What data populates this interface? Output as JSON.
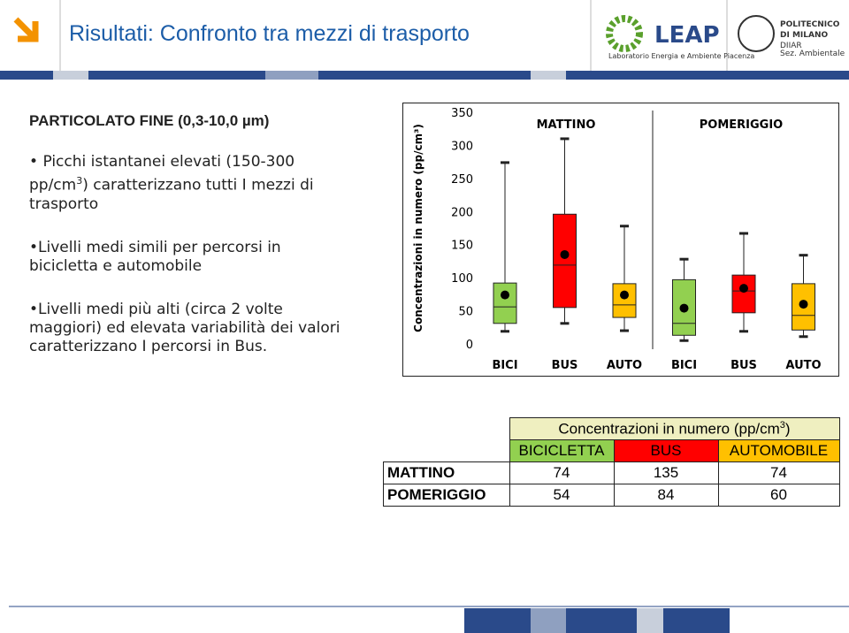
{
  "header": {
    "title": "Risultati: Confronto  tra mezzi di trasporto",
    "leap": {
      "name": "LEAP",
      "subtitle": "Laboratorio Energia e Ambiente Piacenza"
    },
    "polimi": {
      "line1": "POLITECNICO",
      "line2": "DI MILANO",
      "dept": "DIIAR",
      "section": "Sez. Ambientale"
    }
  },
  "body": {
    "heading": "PARTICOLATO FINE  (0,3-10,0 µm)",
    "bullets": [
      {
        "parts": [
          "Picchi istantanei elevati  (150-300 pp/cm",
          "3",
          ") caratterizzano tutti  I  mezzi di trasporto"
        ]
      },
      {
        "parts": [
          "Livelli medi  simili  per  percorsi in bicicletta e automobile"
        ]
      },
      {
        "parts": [
          "Livelli medi più alti (circa 2 volte maggiori) ed elevata variabilità dei valori caratterizzano I percorsi in Bus."
        ]
      }
    ]
  },
  "chart_data": {
    "type": "box",
    "ylabel": "Concentrazioni in numero (pp/cm³)",
    "ylim": [
      0,
      350
    ],
    "yticks": [
      0,
      50,
      100,
      150,
      200,
      250,
      300,
      350
    ],
    "groups": [
      "MATTINO",
      "POMERIGGIO"
    ],
    "categories": [
      "BICI",
      "BUS",
      "AUTO",
      "BICI",
      "BUS",
      "AUTO"
    ],
    "boxes": [
      {
        "min": 19,
        "q1": 31,
        "median": 56,
        "q3": 92,
        "max": 274,
        "mean": 74,
        "color": "#92d050"
      },
      {
        "min": 31,
        "q1": 55,
        "median": 119,
        "q3": 196,
        "max": 310,
        "mean": 135,
        "color": "#ff0000"
      },
      {
        "min": 20,
        "q1": 40,
        "median": 59,
        "q3": 91,
        "max": 178,
        "mean": 74,
        "color": "#ffc000"
      },
      {
        "min": 5,
        "q1": 13,
        "median": 31,
        "q3": 97,
        "max": 128,
        "mean": 54,
        "color": "#92d050"
      },
      {
        "min": 19,
        "q1": 47,
        "median": 80,
        "q3": 104,
        "max": 167,
        "mean": 84,
        "color": "#ff0000"
      },
      {
        "min": 11,
        "q1": 21,
        "median": 43,
        "q3": 91,
        "max": 134,
        "mean": 60,
        "color": "#ffc000"
      }
    ]
  },
  "table": {
    "title": [
      "Concentrazioni in numero (pp/cm",
      "3",
      ")"
    ],
    "columns": [
      "BICICLETTA",
      "BUS",
      "AUTOMOBILE"
    ],
    "column_colors": [
      "#92d050",
      "#ff0000",
      "#ffc000"
    ],
    "rows": [
      [
        "MATTINO",
        "74",
        "135",
        "74"
      ],
      [
        "POMERIGGIO",
        "54",
        "84",
        "60"
      ]
    ]
  }
}
